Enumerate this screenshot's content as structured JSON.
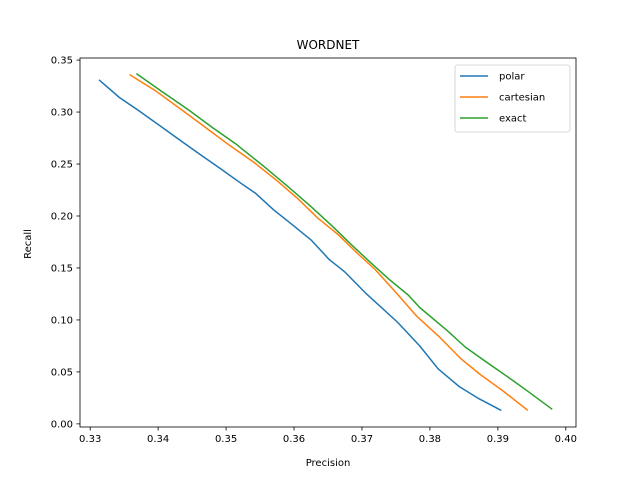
{
  "chart_data": {
    "type": "line",
    "title": "WORDNET",
    "xlabel": "Precision",
    "ylabel": "Recall",
    "xlim": [
      0.3285,
      0.4015
    ],
    "ylim": [
      -0.003,
      0.352
    ],
    "xticks": [
      "0.33",
      "0.34",
      "0.35",
      "0.36",
      "0.37",
      "0.38",
      "0.39",
      "0.40"
    ],
    "yticks": [
      "0.00",
      "0.05",
      "0.10",
      "0.15",
      "0.20",
      "0.25",
      "0.30",
      "0.35"
    ],
    "legend_position": "top-right",
    "grid": false,
    "series": [
      {
        "name": "polar",
        "color": "#1f77b4",
        "points": [
          [
            0.3313,
            0.331
          ],
          [
            0.3343,
            0.314
          ],
          [
            0.337,
            0.302
          ],
          [
            0.3398,
            0.289
          ],
          [
            0.343,
            0.274
          ],
          [
            0.346,
            0.26
          ],
          [
            0.3493,
            0.245
          ],
          [
            0.3525,
            0.23
          ],
          [
            0.3543,
            0.222
          ],
          [
            0.357,
            0.206
          ],
          [
            0.3595,
            0.193
          ],
          [
            0.3625,
            0.177
          ],
          [
            0.3652,
            0.158
          ],
          [
            0.3675,
            0.146
          ],
          [
            0.3705,
            0.126
          ],
          [
            0.3752,
            0.098
          ],
          [
            0.3785,
            0.075
          ],
          [
            0.3812,
            0.053
          ],
          [
            0.3843,
            0.036
          ],
          [
            0.387,
            0.025
          ],
          [
            0.3905,
            0.013
          ]
        ]
      },
      {
        "name": "cartesian",
        "color": "#ff7f0e",
        "points": [
          [
            0.3358,
            0.336
          ],
          [
            0.3395,
            0.321
          ],
          [
            0.3435,
            0.302
          ],
          [
            0.347,
            0.285
          ],
          [
            0.3505,
            0.268
          ],
          [
            0.354,
            0.252
          ],
          [
            0.3575,
            0.234
          ],
          [
            0.3605,
            0.217
          ],
          [
            0.3635,
            0.198
          ],
          [
            0.3665,
            0.182
          ],
          [
            0.3695,
            0.163
          ],
          [
            0.372,
            0.148
          ],
          [
            0.3752,
            0.125
          ],
          [
            0.378,
            0.104
          ],
          [
            0.3815,
            0.083
          ],
          [
            0.3845,
            0.063
          ],
          [
            0.3875,
            0.047
          ],
          [
            0.3905,
            0.033
          ],
          [
            0.3944,
            0.013
          ]
        ]
      },
      {
        "name": "exact",
        "color": "#2ca02c",
        "points": [
          [
            0.3368,
            0.337
          ],
          [
            0.3405,
            0.32
          ],
          [
            0.3445,
            0.302
          ],
          [
            0.348,
            0.285
          ],
          [
            0.3515,
            0.269
          ],
          [
            0.3555,
            0.248
          ],
          [
            0.359,
            0.229
          ],
          [
            0.3625,
            0.209
          ],
          [
            0.3655,
            0.191
          ],
          [
            0.3685,
            0.172
          ],
          [
            0.3713,
            0.155
          ],
          [
            0.374,
            0.139
          ],
          [
            0.3768,
            0.124
          ],
          [
            0.3785,
            0.112
          ],
          [
            0.3825,
            0.09
          ],
          [
            0.3852,
            0.074
          ],
          [
            0.3882,
            0.06
          ],
          [
            0.3915,
            0.045
          ],
          [
            0.3945,
            0.031
          ],
          [
            0.398,
            0.014
          ]
        ]
      }
    ]
  }
}
